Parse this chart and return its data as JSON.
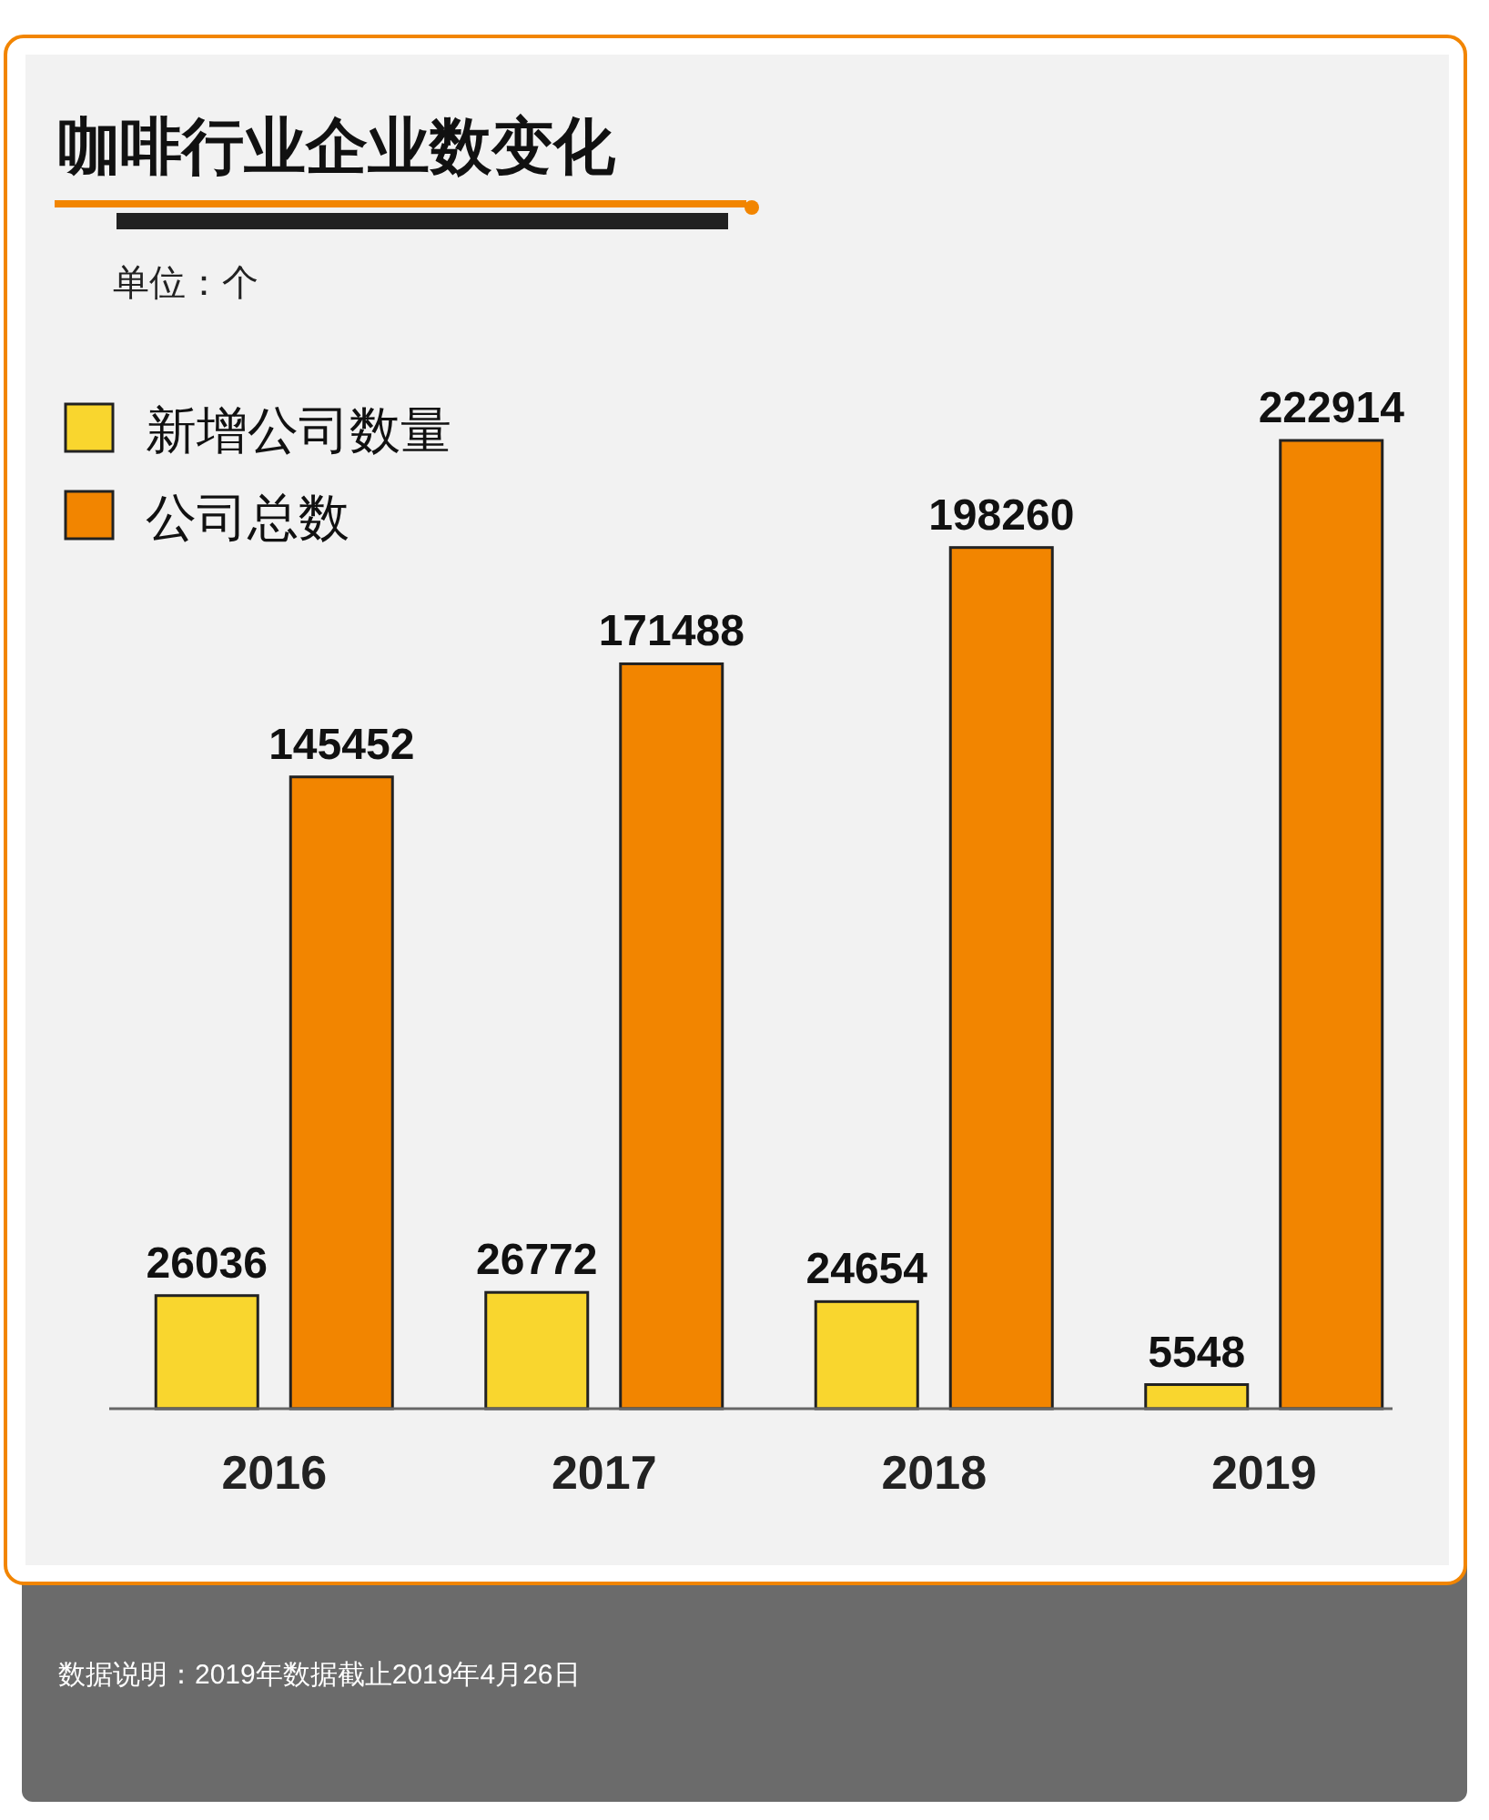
{
  "chart_data": {
    "type": "bar",
    "title": "咖啡行业企业数变化",
    "subtitle": "单位：个",
    "categories": [
      "2016",
      "2017",
      "2018",
      "2019"
    ],
    "series": [
      {
        "name": "新增公司数量",
        "color": "#f9d62e",
        "values": [
          26036,
          26772,
          24654,
          5548
        ]
      },
      {
        "name": "公司总数",
        "color": "#f28500",
        "values": [
          145452,
          171488,
          198260,
          222914
        ]
      }
    ],
    "data_labels": true,
    "legend": "top left",
    "grid": false,
    "annotations": [
      "数据说明：2019年数据截止2019年4月26日"
    ]
  }
}
